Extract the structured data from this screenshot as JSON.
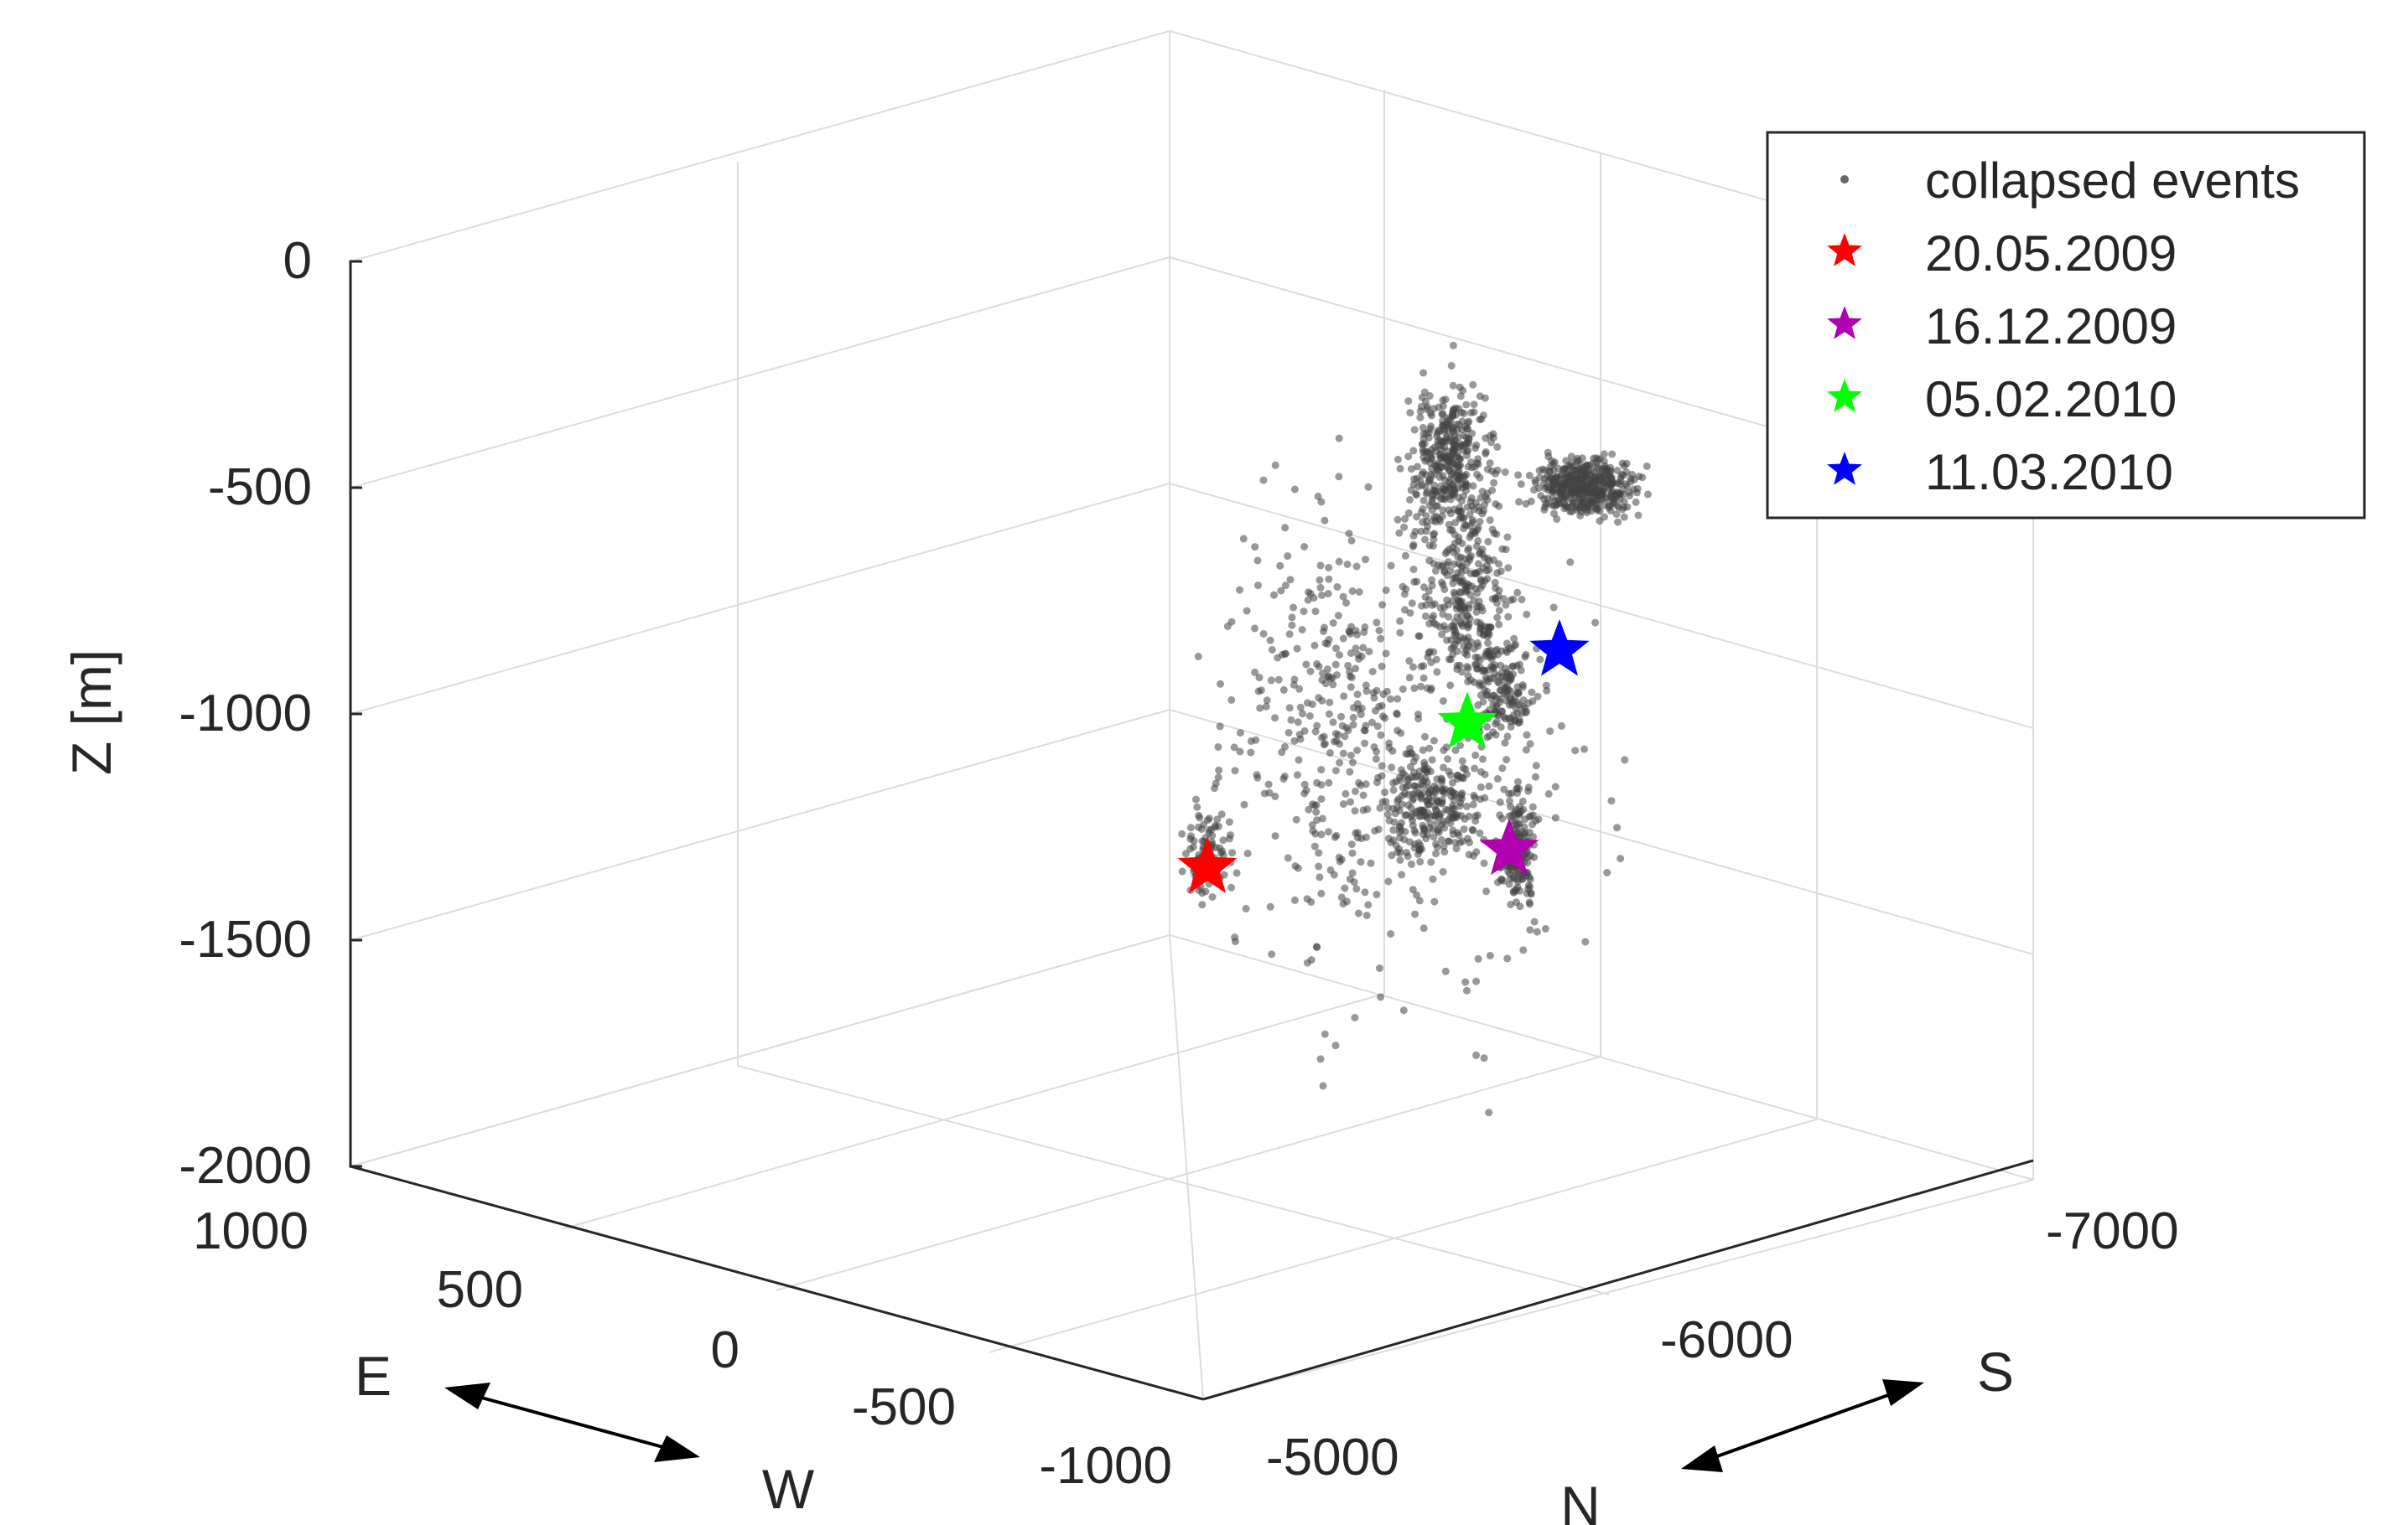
{
  "chart_data": {
    "type": "scatter",
    "dimensions": 3,
    "zlabel": "Z [m]",
    "zlim": [
      -2000,
      0
    ],
    "z_ticks": [
      "0",
      "-500",
      "-1000",
      "-1500",
      "-2000"
    ],
    "x_ticks": [
      "1000",
      "500",
      "0",
      "-500",
      "-1000"
    ],
    "y_ticks": [
      "-7000",
      "-6000",
      "-5000"
    ],
    "ew_axis": {
      "label_e": "E",
      "label_w": "W"
    },
    "ns_axis": {
      "label_n": "N",
      "label_s": "S"
    },
    "grid": true,
    "legend": {
      "placement": "top-right",
      "entries": [
        {
          "label": "collapsed events",
          "marker": "dot",
          "color": "#555555"
        },
        {
          "label": "20.05.2009",
          "marker": "star",
          "color": "#ff0000"
        },
        {
          "label": "16.12.2009",
          "marker": "star",
          "color": "#b000b0"
        },
        {
          "label": "05.02.2010",
          "marker": "star",
          "color": "#00ff00"
        },
        {
          "label": "11.03.2010",
          "marker": "star",
          "color": "#0000ff"
        }
      ]
    },
    "series": [
      {
        "name": "collapsed events",
        "color": "#444444",
        "approx_count": 2500,
        "clusters_view": [
          {
            "u": 0.45,
            "v": -500,
            "spread_u": 0.06,
            "spread_v": 60,
            "n": 420
          },
          {
            "u": 0.29,
            "v": -450,
            "spread_u": 0.05,
            "spread_v": 180,
            "n": 380
          },
          {
            "u": 0.31,
            "v": -750,
            "spread_u": 0.05,
            "spread_v": 180,
            "n": 260
          },
          {
            "u": 0.35,
            "v": -950,
            "spread_u": 0.04,
            "spread_v": 120,
            "n": 150
          },
          {
            "u": 0.27,
            "v": -1200,
            "spread_u": 0.06,
            "spread_v": 120,
            "n": 220
          },
          {
            "u": 0.37,
            "v": -1300,
            "spread_u": 0.02,
            "spread_v": 120,
            "n": 160
          },
          {
            "u": 0.15,
            "v": -1000,
            "spread_u": 0.12,
            "spread_v": 450,
            "n": 240
          },
          {
            "u": 0.0,
            "v": -1300,
            "spread_u": 0.03,
            "spread_v": 120,
            "n": 90
          },
          {
            "u": 0.25,
            "v": -1050,
            "spread_u": 0.2,
            "spread_v": 600,
            "n": 300
          }
        ]
      },
      {
        "name": "20.05.2009",
        "color": "#ff0000",
        "points_view": [
          {
            "u": 0.0,
            "v": -1340
          }
        ]
      },
      {
        "name": "16.12.2009",
        "color": "#b000b0",
        "points_view": [
          {
            "u": 0.36,
            "v": -1300
          }
        ]
      },
      {
        "name": "05.02.2010",
        "color": "#00ff00",
        "points_view": [
          {
            "u": 0.31,
            "v": -1020
          }
        ]
      },
      {
        "name": "11.03.2010",
        "color": "#0000ff",
        "points_view": [
          {
            "u": 0.42,
            "v": -860
          }
        ]
      }
    ]
  }
}
